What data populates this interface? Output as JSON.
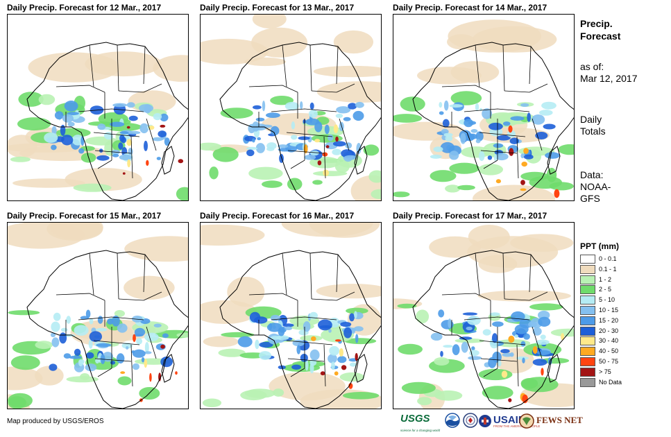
{
  "panels": [
    {
      "title": "Daily Precip. Forecast for 12 Mar., 2017"
    },
    {
      "title": "Daily Precip. Forecast for 13 Mar., 2017"
    },
    {
      "title": "Daily Precip. Forecast for 14 Mar., 2017"
    },
    {
      "title": "Daily Precip. Forecast for 15 Mar., 2017"
    },
    {
      "title": "Daily Precip. Forecast for 16 Mar., 2017"
    },
    {
      "title": "Daily Precip. Forecast for 17 Mar., 2017"
    }
  ],
  "sidebar": {
    "title_line1": "Precip.",
    "title_line2": "Forecast",
    "asof_label": "as of:",
    "asof_date": "Mar 12, 2017",
    "totals_line1": "Daily",
    "totals_line2": "Totals",
    "data_line1": "Data:",
    "data_line2": "NOAA-",
    "data_line3": "GFS"
  },
  "legend": {
    "title": "PPT (mm)",
    "items": [
      {
        "label": "0 - 0.1",
        "color": "#ffffff"
      },
      {
        "label": "0.1 - 1",
        "color": "#f0dcbe"
      },
      {
        "label": "1 - 2",
        "color": "#b9f2b4"
      },
      {
        "label": "2 - 5",
        "color": "#6fdc6b"
      },
      {
        "label": "5 - 10",
        "color": "#b5ecf4"
      },
      {
        "label": "10 - 15",
        "color": "#84c0f0"
      },
      {
        "label": "15 - 20",
        "color": "#4d9be8"
      },
      {
        "label": "20 - 30",
        "color": "#1d5fd8"
      },
      {
        "label": "30 - 40",
        "color": "#ffe98a"
      },
      {
        "label": "40 - 50",
        "color": "#ffaa22"
      },
      {
        "label": "50 - 75",
        "color": "#ff4411"
      },
      {
        "label": "> 75",
        "color": "#a31515"
      },
      {
        "label": "No Data",
        "color": "#999999"
      }
    ]
  },
  "footer": {
    "credit": "Map produced by USGS/EROS",
    "usgs_logo": "USGS",
    "usgs_tagline": "science for a changing world",
    "usaid_logo": "USAID",
    "usaid_tagline": "FROM THE AMERICAN PEOPLE",
    "fews_logo": "FEWS NET"
  }
}
